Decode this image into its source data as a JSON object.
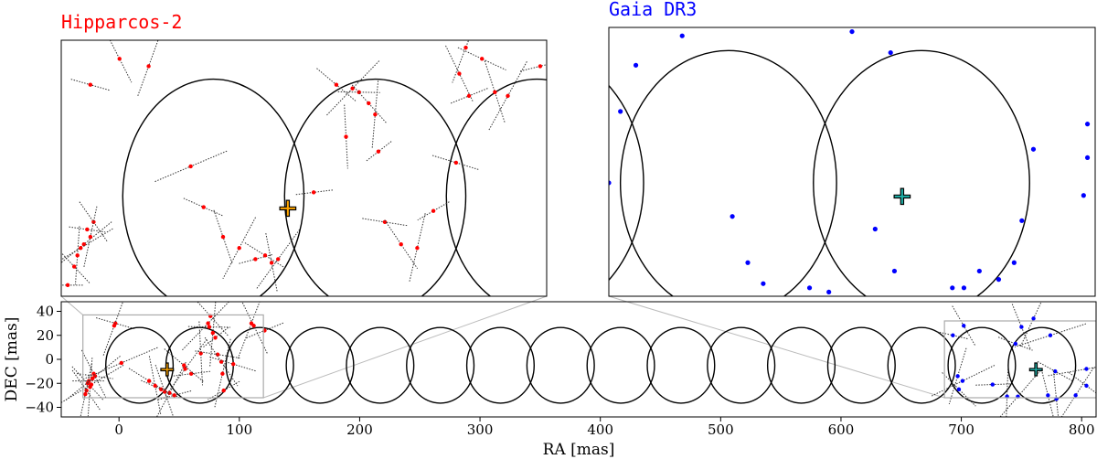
{
  "chart_data": [
    {
      "panel": "main",
      "type": "scatter",
      "xlabel": "RA [mas]",
      "ylabel": "DEC [mas]",
      "xlim": [
        -48,
        812
      ],
      "ylim": [
        -48,
        48
      ],
      "x_ticks": [
        0,
        100,
        200,
        300,
        400,
        500,
        600,
        700,
        800
      ],
      "y_ticks": [
        40,
        20,
        0,
        -20,
        -40
      ],
      "grid": false,
      "loops": {
        "x_centers": [
          17,
          67,
          117,
          167,
          217,
          267,
          317,
          367,
          417,
          467,
          517,
          567,
          617,
          667,
          717,
          767
        ],
        "radius_ra": 28,
        "radius_dec": 31.5,
        "center_dec": -5
      },
      "series": [
        {
          "color": "#ff0000",
          "points": [
            [
              -25,
              -18
            ],
            [
              -26,
              -20
            ],
            [
              -24,
              -23
            ],
            [
              -22,
              -16
            ],
            [
              -20,
              -14
            ],
            [
              -27,
              -26
            ],
            [
              -28,
              -29
            ],
            [
              -23,
              -21
            ],
            [
              -3,
              30
            ],
            [
              -21,
              -12
            ],
            [
              -4,
              28
            ],
            [
              2,
              -3
            ],
            [
              35,
              -25
            ],
            [
              38,
              -27
            ],
            [
              42,
              -28
            ],
            [
              46,
              -30
            ],
            [
              25,
              -18
            ],
            [
              30,
              -22
            ],
            [
              55,
              -8
            ],
            [
              60,
              -12
            ],
            [
              54,
              -5
            ],
            [
              68,
              5
            ],
            [
              74,
              30
            ],
            [
              75,
              27
            ],
            [
              76,
              36
            ],
            [
              78,
              22
            ],
            [
              80,
              18
            ],
            [
              82,
              4
            ],
            [
              85,
              -2
            ],
            [
              86,
              -12
            ],
            [
              87,
              -26
            ],
            [
              95,
              -4
            ],
            [
              112,
              28
            ],
            [
              110,
              30
            ],
            [
              121,
              24
            ]
          ]
        },
        {
          "color": "#0000ff",
          "points": [
            [
              693,
              20
            ],
            [
              702,
              28
            ],
            [
              697,
              -14
            ],
            [
              701,
              -18
            ],
            [
              745,
              13
            ],
            [
              750,
              27
            ],
            [
              760,
              34
            ],
            [
              774,
              20
            ],
            [
              778,
              -10
            ],
            [
              772,
              -30
            ],
            [
              795,
              -30
            ],
            [
              804,
              -8
            ],
            [
              804,
              -22
            ],
            [
              779,
              -33
            ],
            [
              747,
              -31
            ],
            [
              726,
              -21
            ],
            [
              698,
              -25
            ],
            [
              738,
              -31
            ]
          ]
        }
      ],
      "markers": [
        {
          "label": "+",
          "x": 40,
          "y": -8,
          "color": "#ffa500"
        },
        {
          "label": "+",
          "x": 762,
          "y": -8,
          "color": "#20b2aa"
        }
      ],
      "zoom_boxes": [
        [
          -30,
          120,
          -32,
          37
        ],
        [
          686,
          812,
          -32,
          32
        ]
      ]
    },
    {
      "panel": "inset-left",
      "title": "Hipparcos-2",
      "title_color": "#ff0000",
      "type": "scatter",
      "xlim": [
        -30,
        120
      ],
      "ylim": [
        -32,
        37
      ],
      "series": [
        {
          "color": "#ff0000",
          "points": [
            [
              -28,
              -29
            ],
            [
              -26,
              -24
            ],
            [
              -25,
              -21
            ],
            [
              -23,
              -18
            ],
            [
              -22,
              -14
            ],
            [
              -20,
              -12
            ],
            [
              -21,
              -16
            ],
            [
              -24,
              -19
            ],
            [
              -21,
              25
            ],
            [
              -12,
              32
            ],
            [
              -3,
              30
            ],
            [
              10,
              3
            ],
            [
              14,
              -8
            ],
            [
              20,
              -16
            ],
            [
              25,
              -19
            ],
            [
              30,
              -22
            ],
            [
              33,
              -21
            ],
            [
              35,
              -23
            ],
            [
              37,
              -22
            ],
            [
              48,
              -4
            ],
            [
              55,
              25
            ],
            [
              58,
              11
            ],
            [
              60,
              24
            ],
            [
              62,
              23
            ],
            [
              65,
              20
            ],
            [
              67,
              17
            ],
            [
              68,
              7
            ],
            [
              70,
              -12
            ],
            [
              75,
              -18
            ],
            [
              80,
              -19
            ],
            [
              85,
              -9
            ],
            [
              92,
              4
            ],
            [
              93,
              28
            ],
            [
              95,
              35
            ],
            [
              96,
              22
            ],
            [
              100,
              32
            ],
            [
              104,
              23
            ],
            [
              108,
              22
            ],
            [
              118,
              30
            ]
          ]
        }
      ],
      "markers": [
        {
          "label": "+",
          "x": 40,
          "y": -8,
          "color": "#ffa500"
        }
      ]
    },
    {
      "panel": "inset-right",
      "title": "Gaia DR3",
      "title_color": "#0000ff",
      "type": "scatter",
      "xlim": [
        686,
        812
      ],
      "ylim": [
        -32,
        32
      ],
      "series": [
        {
          "color": "#0000ff",
          "points": [
            [
              686,
              -5
            ],
            [
              689,
              12
            ],
            [
              693,
              23
            ],
            [
              705,
              30
            ],
            [
              718,
              -13
            ],
            [
              722,
              -24
            ],
            [
              726,
              -29
            ],
            [
              738,
              -30
            ],
            [
              743,
              -31
            ],
            [
              749,
              31
            ],
            [
              759,
              26
            ],
            [
              755,
              -16
            ],
            [
              760,
              -26
            ],
            [
              775,
              -30
            ],
            [
              778,
              -30
            ],
            [
              782,
              -26
            ],
            [
              787,
              -28
            ],
            [
              791,
              -24
            ],
            [
              809,
              -8
            ],
            [
              810,
              1
            ],
            [
              810,
              9
            ],
            [
              793,
              -14
            ],
            [
              796,
              3
            ]
          ]
        }
      ],
      "markers": [
        {
          "label": "+",
          "x": 762,
          "y": -8,
          "color": "#20b2aa"
        }
      ]
    }
  ]
}
